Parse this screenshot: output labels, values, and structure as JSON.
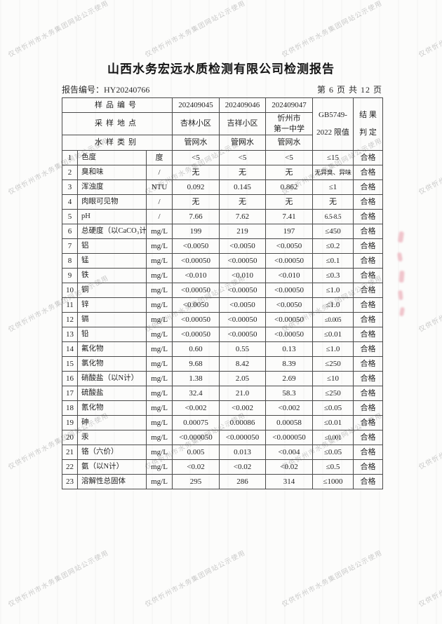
{
  "page": {
    "title": "山西水务宏远水质检测有限公司检测报告",
    "report_no_label": "报告编号：HY20240766",
    "page_indicator": "第 6 页 共 12 页"
  },
  "table": {
    "header": {
      "sample_id_label": "样品编号",
      "sample_ids": [
        "202409045",
        "202409046",
        "202409047"
      ],
      "location_label": "采样地点",
      "locations": [
        "杏林小区",
        "吉祥小区",
        "忻州市\n第一中学"
      ],
      "type_label": "水样类别",
      "types": [
        "管网水",
        "管网水",
        "管网水"
      ],
      "limit_header": "GB5749-\n2022 限值",
      "result_header": "结 果\n判 定"
    },
    "rows": [
      {
        "no": "1",
        "name": "色度",
        "unit": "度",
        "v": [
          "<5",
          "<5",
          "<5"
        ],
        "limit": "≤15",
        "result": "合格"
      },
      {
        "no": "2",
        "name": "臭和味",
        "unit": "/",
        "v": [
          "无",
          "无",
          "无"
        ],
        "limit": "无异臭、异味",
        "result": "合格"
      },
      {
        "no": "3",
        "name": "浑浊度",
        "unit": "NTU",
        "v": [
          "0.092",
          "0.145",
          "0.862"
        ],
        "limit": "≤1",
        "result": "合格"
      },
      {
        "no": "4",
        "name": "肉眼可见物",
        "unit": "/",
        "v": [
          "无",
          "无",
          "无"
        ],
        "limit": "无",
        "result": "合格"
      },
      {
        "no": "5",
        "name": "pH",
        "unit": "/",
        "v": [
          "7.66",
          "7.62",
          "7.41"
        ],
        "limit": "6.5-8.5",
        "result": "合格"
      },
      {
        "no": "6",
        "name": "总硬度（以CaCO₃计）",
        "unit": "mg/L",
        "v": [
          "199",
          "219",
          "197"
        ],
        "limit": "≤450",
        "result": "合格"
      },
      {
        "no": "7",
        "name": "铝",
        "unit": "mg/L",
        "v": [
          "<0.0050",
          "<0.0050",
          "<0.0050"
        ],
        "limit": "≤0.2",
        "result": "合格"
      },
      {
        "no": "8",
        "name": "锰",
        "unit": "mg/L",
        "v": [
          "<0.00050",
          "<0.00050",
          "<0.00050"
        ],
        "limit": "≤0.1",
        "result": "合格"
      },
      {
        "no": "9",
        "name": "铁",
        "unit": "mg/L",
        "v": [
          "<0.010",
          "<0.010",
          "<0.010"
        ],
        "limit": "≤0.3",
        "result": "合格"
      },
      {
        "no": "10",
        "name": "铜",
        "unit": "mg/L",
        "v": [
          "<0.00050",
          "<0.00050",
          "<0.00050"
        ],
        "limit": "≤1.0",
        "result": "合格"
      },
      {
        "no": "11",
        "name": "锌",
        "unit": "mg/L",
        "v": [
          "<0.0050",
          "<0.0050",
          "<0.0050"
        ],
        "limit": "≤1.0",
        "result": "合格"
      },
      {
        "no": "12",
        "name": "镉",
        "unit": "mg/L",
        "v": [
          "<0.00050",
          "<0.00050",
          "<0.00050"
        ],
        "limit": "≤0.005",
        "result": "合格"
      },
      {
        "no": "13",
        "name": "铅",
        "unit": "mg/L",
        "v": [
          "<0.00050",
          "<0.00050",
          "<0.00050"
        ],
        "limit": "≤0.01",
        "result": "合格"
      },
      {
        "no": "14",
        "name": "氟化物",
        "unit": "mg/L",
        "v": [
          "0.60",
          "0.55",
          "0.13"
        ],
        "limit": "≤1.0",
        "result": "合格"
      },
      {
        "no": "15",
        "name": "氯化物",
        "unit": "mg/L",
        "v": [
          "9.68",
          "8.42",
          "8.39"
        ],
        "limit": "≤250",
        "result": "合格"
      },
      {
        "no": "16",
        "name": "硝酸盐（以N计）",
        "unit": "mg/L",
        "v": [
          "1.38",
          "2.05",
          "2.69"
        ],
        "limit": "≤10",
        "result": "合格"
      },
      {
        "no": "17",
        "name": "硫酸盐",
        "unit": "mg/L",
        "v": [
          "32.4",
          "21.0",
          "58.3"
        ],
        "limit": "≤250",
        "result": "合格"
      },
      {
        "no": "18",
        "name": "氰化物",
        "unit": "mg/L",
        "v": [
          "<0.002",
          "<0.002",
          "<0.002"
        ],
        "limit": "≤0.05",
        "result": "合格"
      },
      {
        "no": "19",
        "name": "砷",
        "unit": "mg/L",
        "v": [
          "0.00075",
          "0.00086",
          "0.00058"
        ],
        "limit": "≤0.01",
        "result": "合格"
      },
      {
        "no": "20",
        "name": "汞",
        "unit": "mg/L",
        "v": [
          "<0.000050",
          "<0.000050",
          "<0.000050"
        ],
        "limit": "≤0.001",
        "result": "合格"
      },
      {
        "no": "21",
        "name": "铬（六价）",
        "unit": "mg/L",
        "v": [
          "0.005",
          "0.013",
          "<0.004"
        ],
        "limit": "≤0.05",
        "result": "合格"
      },
      {
        "no": "22",
        "name": "氨（以N计）",
        "unit": "mg/L",
        "v": [
          "<0.02",
          "<0.02",
          "<0.02"
        ],
        "limit": "≤0.5",
        "result": "合格"
      },
      {
        "no": "23",
        "name": "溶解性总固体",
        "unit": "mg/L",
        "v": [
          "295",
          "286",
          "314"
        ],
        "limit": "≤1000",
        "result": "合格"
      }
    ]
  },
  "watermark": {
    "text": "仅供忻州市水务集团网站公示使用",
    "color": "#848484"
  },
  "stamp_bleed_color": "#de697d"
}
